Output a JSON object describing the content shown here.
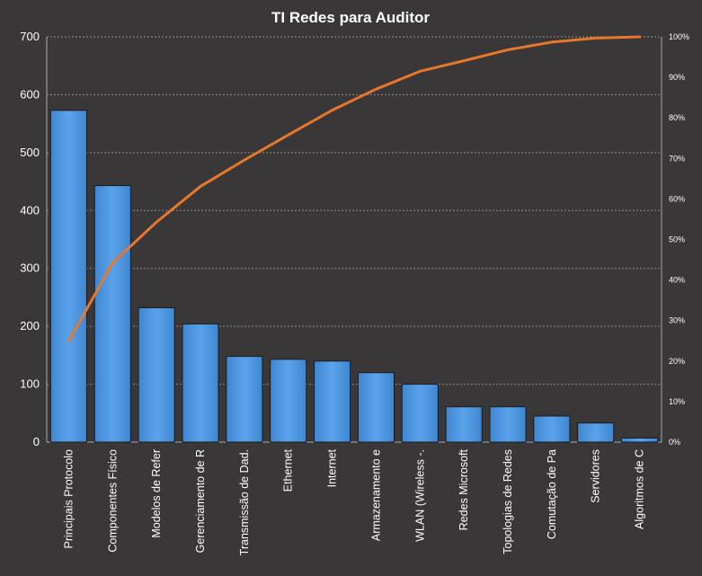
{
  "chart_data": {
    "type": "bar",
    "title": "TI Redes para Auditor",
    "categories": [
      "Principais Protocolo",
      "Componentes Físico",
      "Modelos de Refer",
      "Gerenciamento de R",
      "Transmissão de Dad.",
      "Ethernet",
      "Internet",
      "Armazenamento  e",
      "WLAN (Wireless -.",
      "Redes Microsoft",
      "Topologias de Redes",
      "Comutação de Pa",
      "Servidores",
      "Algoritmos de C"
    ],
    "series": [
      {
        "type": "bar",
        "axis": "left",
        "values": [
          573,
          443,
          232,
          204,
          148,
          143,
          140,
          120,
          100,
          61,
          61,
          45,
          33,
          7
        ]
      },
      {
        "type": "line",
        "axis": "right",
        "values": [
          24.9,
          44.2,
          54.3,
          63.1,
          69.6,
          75.8,
          81.9,
          87.1,
          91.5,
          94.1,
          96.8,
          98.7,
          99.7,
          100
        ]
      }
    ],
    "ylim": [
      0,
      700
    ],
    "yticks": [
      0,
      100,
      200,
      300,
      400,
      500,
      600,
      700
    ],
    "y2lim": [
      0,
      100
    ],
    "y2ticks": [
      "0%",
      "10%",
      "20%",
      "30%",
      "40%",
      "50%",
      "60%",
      "70%",
      "80%",
      "90%",
      "100%"
    ],
    "grid": true,
    "legend": "none",
    "colors": {
      "background": "#393737",
      "bar_fill": "#4b94dc",
      "bar_edge": "#1c1c1c",
      "line": "#e8772e",
      "grid": "#8c8c8c",
      "text": "#ffffff"
    }
  }
}
